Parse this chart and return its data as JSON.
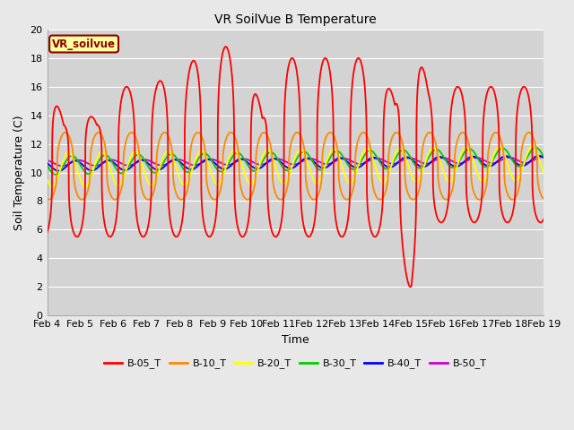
{
  "title": "VR SoilVue B Temperature",
  "xlabel": "Time",
  "ylabel": "Soil Temperature (C)",
  "ylim": [
    0,
    20
  ],
  "xlim_days": [
    4,
    19
  ],
  "annotation_text": "VR_soilvue",
  "series_colors": {
    "B-05_T": "#ff0000",
    "B-10_T": "#ff8800",
    "B-20_T": "#ffff00",
    "B-30_T": "#00cc00",
    "B-40_T": "#0000ff",
    "B-50_T": "#cc00cc"
  },
  "legend_colors": [
    "#ff0000",
    "#ff8800",
    "#ffff00",
    "#00cc00",
    "#0000ff",
    "#cc00cc"
  ],
  "legend_labels": [
    "B-05_T",
    "B-10_T",
    "B-20_T",
    "B-30_T",
    "B-40_T",
    "B-50_T"
  ],
  "background_color": "#e8e8e8",
  "plot_bg_color": "#d3d3d3",
  "grid_color": "#ffffff",
  "yticks": [
    0,
    2,
    4,
    6,
    8,
    10,
    12,
    14,
    16,
    18,
    20
  ],
  "xtick_days": [
    4,
    5,
    6,
    7,
    8,
    9,
    10,
    11,
    12,
    13,
    14,
    15,
    16,
    17,
    18,
    19
  ],
  "xtick_labels": [
    "Feb 4",
    "Feb 5",
    "Feb 6",
    "Feb 7",
    "Feb 8",
    "Feb 9",
    "Feb 10",
    "Feb 11",
    "Feb 12",
    "Feb 13",
    "Feb 14",
    "Feb 15",
    "Feb 16",
    "Feb 17",
    "Feb 18",
    "Feb 19"
  ]
}
